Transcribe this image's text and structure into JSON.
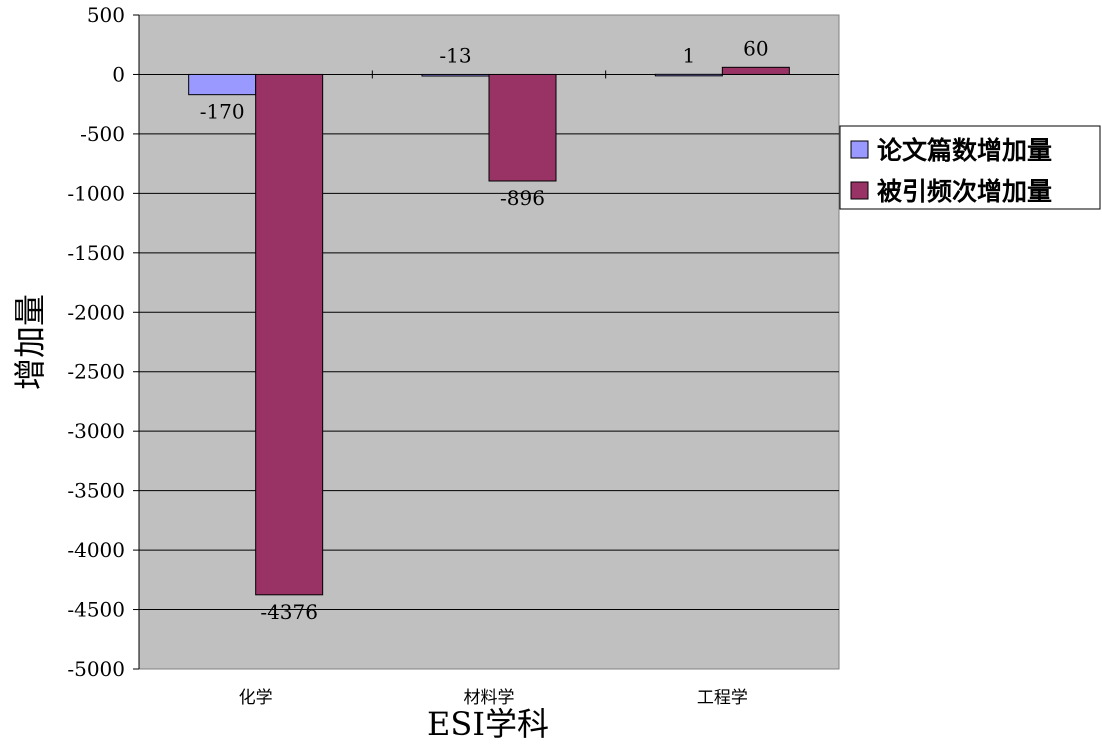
{
  "chart_data": {
    "type": "bar",
    "title": "",
    "xlabel": "ESI学科",
    "ylabel": "增加量",
    "categories": [
      "化学",
      "材料学",
      "工程学"
    ],
    "series": [
      {
        "name": "论文篇数增加量",
        "values": [
          -170,
          -13,
          1
        ],
        "color": "#9999ff"
      },
      {
        "name": "被引频次增加量",
        "values": [
          -4376,
          -896,
          60
        ],
        "color": "#993366"
      }
    ],
    "data_labels": [
      [
        "-170",
        "-13",
        "1"
      ],
      [
        "-4376",
        "-896",
        "60"
      ]
    ],
    "ylim": [
      -5000,
      500
    ],
    "yticks": [
      500,
      0,
      -500,
      -1000,
      -1500,
      -2000,
      -2500,
      -3000,
      -3500,
      -4000,
      -4500,
      -5000
    ],
    "ytick_labels": [
      "500",
      "0",
      "-500",
      "-1000",
      "-1500",
      "-2000",
      "-2500",
      "-3000",
      "-3500",
      "-4000",
      "-4500",
      "-5000"
    ],
    "grid": true,
    "legend_position": "right",
    "plot_background": "#c0c0c0"
  }
}
